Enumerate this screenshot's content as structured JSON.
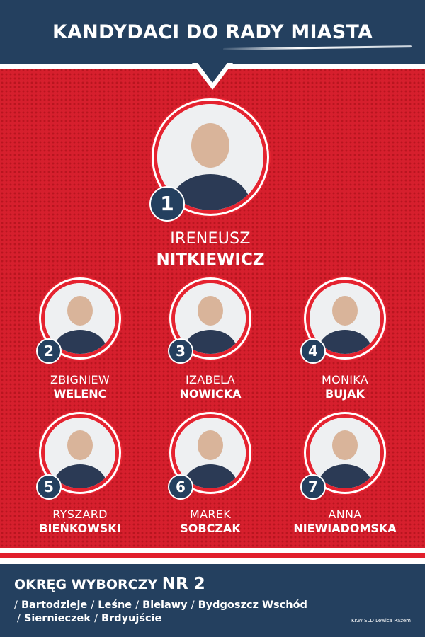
{
  "header": {
    "title": "KANDYDACI DO RADY MIASTA"
  },
  "colors": {
    "navy": "#24405f",
    "red": "#d61f2d"
  },
  "candidates": [
    {
      "number": "1",
      "first": "IRENEUSZ",
      "last": "NITKIEWICZ"
    },
    {
      "number": "2",
      "first": "ZBIGNIEW",
      "last": "WELENC"
    },
    {
      "number": "3",
      "first": "IZABELA",
      "last": "NOWICKA"
    },
    {
      "number": "4",
      "first": "MONIKA",
      "last": "BUJAK"
    },
    {
      "number": "5",
      "first": "RYSZARD",
      "last": "BIEŃKOWSKI"
    },
    {
      "number": "6",
      "first": "MAREK",
      "last": "SOBCZAK"
    },
    {
      "number": "7",
      "first": "ANNA",
      "last": "NIEWIADOMSKA"
    }
  ],
  "footer": {
    "district_label": "OKRĘG WYBORCZY",
    "district_number": "NR 2",
    "separator": "/",
    "areas": [
      "Bartodzieje",
      "Leśne",
      "Bielawy",
      "Bydgoszcz Wschód",
      "Siernieczek",
      "Brdyujście"
    ],
    "committee": "KKW SLD Lewica Razem"
  }
}
